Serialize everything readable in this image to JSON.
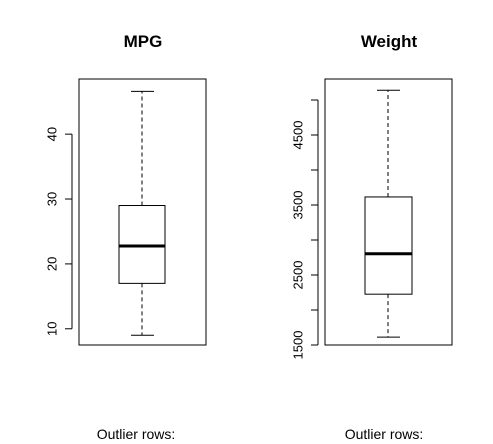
{
  "chart_data": [
    {
      "type": "box",
      "title": "MPG",
      "ylim": [
        7.5,
        48.5
      ],
      "ticks": [
        "10",
        "20",
        "30",
        "40"
      ],
      "stats": {
        "min": 9,
        "q1": 17,
        "median": 22.75,
        "q3": 29,
        "max": 46.6
      },
      "footer": "Outlier rows:"
    },
    {
      "type": "box",
      "title": "Weight",
      "ylim": [
        1500,
        5300
      ],
      "ticks": [
        "1500",
        "2500",
        "3500",
        "4500"
      ],
      "stats": {
        "min": 1613,
        "q1": 2226,
        "median": 2804,
        "q3": 3615,
        "max": 5140
      },
      "footer": "Outlier rows:"
    }
  ]
}
